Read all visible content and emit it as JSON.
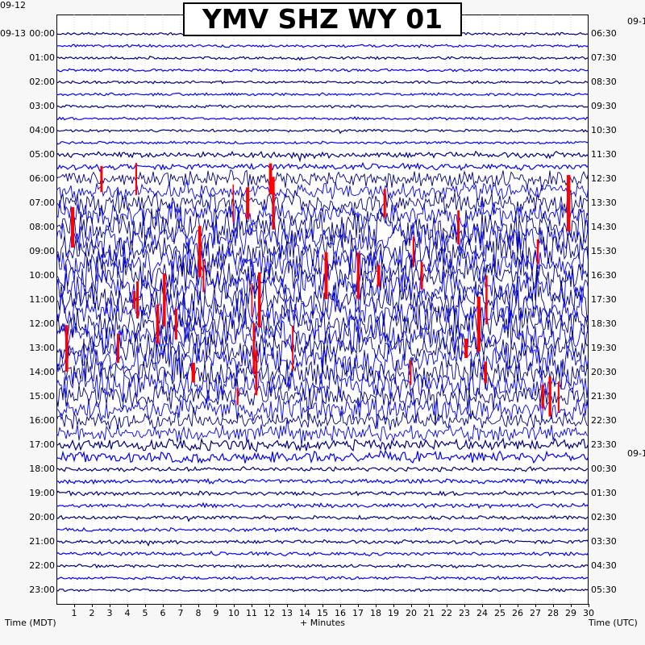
{
  "title": "YMV SHZ WY 01",
  "left_dates": [
    "09-12",
    "09-13"
  ],
  "right_dates": [
    "09-1",
    "09-1"
  ],
  "left_axis_label": "Time (MDT)",
  "right_axis_label": "Time (UTC)",
  "x_axis_label": "+ Minutes",
  "chart_data": {
    "type": "line",
    "title": "YMV SHZ WY 01",
    "xlabel": "+ Minutes",
    "ylabel_left": "Time (MDT)",
    "ylabel_right": "Time (UTC)",
    "xlim": [
      0,
      30
    ],
    "x_ticks": [
      "1",
      "2",
      "3",
      "4",
      "5",
      "6",
      "7",
      "8",
      "9",
      "10",
      "11",
      "12",
      "13",
      "14",
      "15",
      "16",
      "17",
      "18",
      "19",
      "20",
      "21",
      "22",
      "23",
      "24",
      "25",
      "26",
      "27",
      "28",
      "29",
      "30"
    ],
    "left_hour_labels": [
      "00:00",
      "01:00",
      "02:00",
      "03:00",
      "04:00",
      "05:00",
      "06:00",
      "07:00",
      "08:00",
      "09:00",
      "10:00",
      "11:00",
      "12:00",
      "13:00",
      "14:00",
      "15:00",
      "16:00",
      "17:00",
      "18:00",
      "19:00",
      "20:00",
      "21:00",
      "22:00",
      "23:00"
    ],
    "right_hour_labels": [
      "06:30",
      "07:30",
      "08:30",
      "09:30",
      "10:30",
      "11:30",
      "12:30",
      "13:30",
      "14:30",
      "15:30",
      "16:30",
      "17:30",
      "18:30",
      "19:30",
      "20:30",
      "21:30",
      "22:30",
      "23:30",
      "00:30",
      "01:30",
      "02:30",
      "03:30",
      "04:30",
      "05:30"
    ],
    "rows_per_hour": 2,
    "trace_colors": [
      "#000080",
      "#0000ff"
    ],
    "clip_color": "#ff0000",
    "grid": true,
    "activity_level_by_hour": [
      0.05,
      0.05,
      0.05,
      0.05,
      0.05,
      0.15,
      0.45,
      0.7,
      1.0,
      1.0,
      1.0,
      1.0,
      1.0,
      0.95,
      0.85,
      0.7,
      0.45,
      0.3,
      0.1,
      0.1,
      0.08,
      0.08,
      0.06,
      0.05
    ]
  }
}
